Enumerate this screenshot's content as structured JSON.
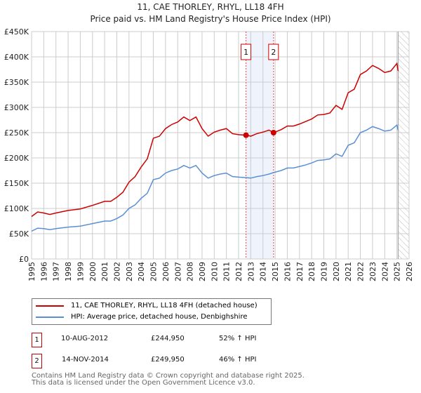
{
  "title": "11, CAE THORLEY, RHYL, LL18 4FH",
  "subtitle": "Price paid vs. HM Land Registry's House Price Index (HPI)",
  "chart_data": {
    "type": "line",
    "title": "11, CAE THORLEY, RHYL, LL18 4FH",
    "subtitle": "Price paid vs. HM Land Registry's House Price Index (HPI)",
    "xlim": [
      1995,
      2026
    ],
    "ylim": [
      0,
      450000
    ],
    "grid": true,
    "legend_placement": "below",
    "y_ticks": [
      0,
      50000,
      100000,
      150000,
      200000,
      250000,
      300000,
      350000,
      400000,
      450000
    ],
    "y_tick_labels": [
      "£0",
      "£50K",
      "£100K",
      "£150K",
      "£200K",
      "£250K",
      "£300K",
      "£350K",
      "£400K",
      "£450K"
    ],
    "x_ticks": [
      1995,
      1996,
      1997,
      1998,
      1999,
      2000,
      2001,
      2002,
      2003,
      2004,
      2005,
      2006,
      2007,
      2008,
      2009,
      2010,
      2011,
      2012,
      2013,
      2014,
      2015,
      2016,
      2017,
      2018,
      2019,
      2020,
      2021,
      2022,
      2023,
      2024,
      2025,
      2026
    ],
    "shaded_range": [
      2012.61,
      2014.87
    ],
    "forecast_hatch_from": 2025.1,
    "x": [
      1995,
      1995.5,
      1996,
      1996.5,
      1997,
      1998,
      1999,
      2000,
      2001,
      2001.5,
      2002,
      2002.5,
      2003,
      2003.5,
      2004,
      2004.5,
      2005,
      2005.5,
      2006,
      2006.5,
      2007,
      2007.5,
      2008,
      2008.5,
      2009,
      2009.5,
      2010,
      2010.5,
      2011,
      2011.5,
      2012,
      2012.61,
      2013,
      2013.5,
      2014,
      2014.5,
      2014.87,
      2015.5,
      2016,
      2016.5,
      2017,
      2017.5,
      2018,
      2018.5,
      2019,
      2019.5,
      2020,
      2020.5,
      2021,
      2021.5,
      2022,
      2022.5,
      2023,
      2023.5,
      2024,
      2024.5,
      2025,
      2025.1
    ],
    "series": [
      {
        "name": "11, CAE THORLEY, RHYL, LL18 4FH (detached house)",
        "color": "#cc0000",
        "values": [
          84000,
          93000,
          91000,
          88000,
          91000,
          96000,
          99000,
          106000,
          114000,
          114000,
          122000,
          132000,
          152000,
          163000,
          182000,
          198000,
          239000,
          243000,
          258000,
          266000,
          271000,
          281000,
          274000,
          281000,
          258000,
          243000,
          251000,
          255000,
          258000,
          248000,
          246000,
          244950,
          243000,
          248000,
          251000,
          255000,
          249950,
          256000,
          263000,
          263000,
          267000,
          272000,
          277000,
          285000,
          286000,
          289000,
          304000,
          296000,
          329000,
          336000,
          365000,
          372000,
          383000,
          377000,
          369000,
          372000,
          387000,
          372000
        ]
      },
      {
        "name": "HPI: Average price, detached house, Denbighshire",
        "color": "#5b8fd4",
        "values": [
          55000,
          61000,
          60000,
          58000,
          60000,
          63000,
          65000,
          70000,
          75000,
          75000,
          80000,
          87000,
          100000,
          107000,
          120000,
          130000,
          157000,
          160000,
          170000,
          175000,
          178000,
          185000,
          180000,
          185000,
          170000,
          160000,
          165000,
          168000,
          170000,
          163000,
          162000,
          161000,
          160000,
          163000,
          165000,
          168000,
          171000,
          175000,
          180000,
          180000,
          183000,
          186000,
          190000,
          195000,
          196000,
          198000,
          208000,
          203000,
          225000,
          230000,
          250000,
          255000,
          262000,
          258000,
          253000,
          255000,
          265000,
          255000
        ]
      }
    ],
    "sales": [
      {
        "label": "1",
        "x": 2012.61,
        "date": "10-AUG-2012",
        "price": 244950,
        "price_text": "£244,950",
        "hpi_text": "52% ↑ HPI"
      },
      {
        "label": "2",
        "x": 2014.87,
        "date": "14-NOV-2014",
        "price": 249950,
        "price_text": "£249,950",
        "hpi_text": "46% ↑ HPI"
      }
    ]
  },
  "legend": {
    "red": "11, CAE THORLEY, RHYL, LL18 4FH (detached house)",
    "blue": "HPI: Average price, detached house, Denbighshire"
  },
  "footer": {
    "line1": "Contains HM Land Registry data © Crown copyright and database right 2025.",
    "line2": "This data is licensed under the Open Government Licence v3.0."
  }
}
